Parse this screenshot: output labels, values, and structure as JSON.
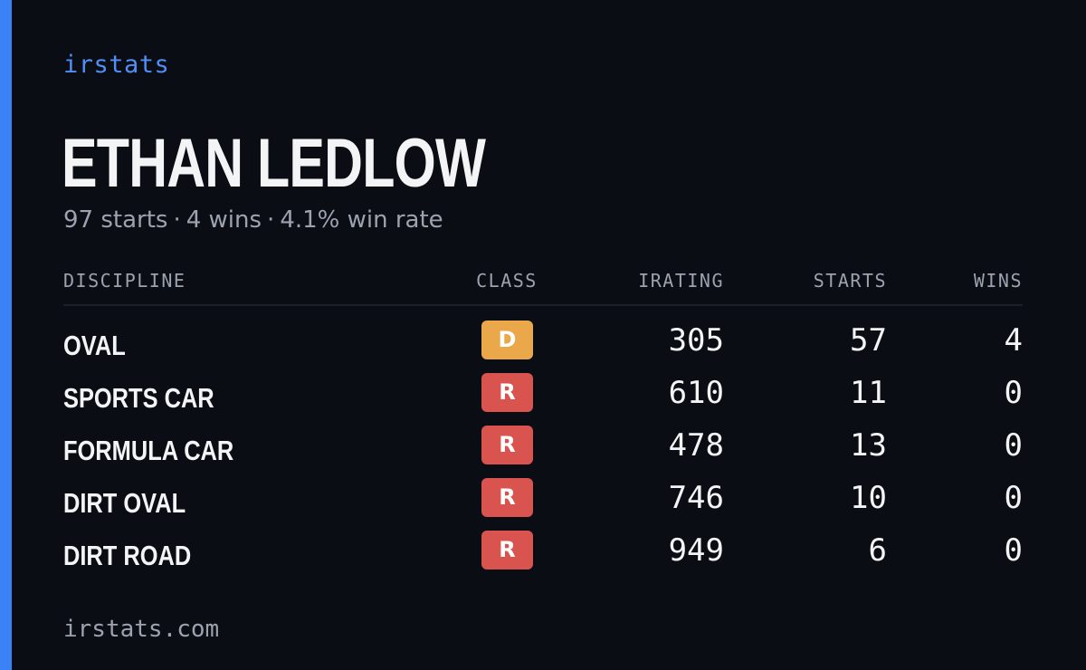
{
  "brand": "irstats",
  "driver": {
    "name": "ETHAN LEDLOW",
    "starts_text": "97 starts",
    "wins_text": "4 wins",
    "win_rate_text": "4.1% win rate",
    "separator": "·"
  },
  "table": {
    "headers": {
      "discipline": "DISCIPLINE",
      "class": "CLASS",
      "irating": "IRATING",
      "starts": "STARTS",
      "wins": "WINS"
    },
    "rows": [
      {
        "discipline": "OVAL",
        "class": "D",
        "class_color": "#eba84a",
        "irating": "305",
        "starts": "57",
        "wins": "4"
      },
      {
        "discipline": "SPORTS CAR",
        "class": "R",
        "class_color": "#d9534f",
        "irating": "610",
        "starts": "11",
        "wins": "0"
      },
      {
        "discipline": "FORMULA CAR",
        "class": "R",
        "class_color": "#d9534f",
        "irating": "478",
        "starts": "13",
        "wins": "0"
      },
      {
        "discipline": "DIRT OVAL",
        "class": "R",
        "class_color": "#d9534f",
        "irating": "746",
        "starts": "10",
        "wins": "0"
      },
      {
        "discipline": "DIRT ROAD",
        "class": "R",
        "class_color": "#d9534f",
        "irating": "949",
        "starts": "6",
        "wins": "0"
      }
    ]
  },
  "footer": {
    "url": "irstats.com"
  },
  "colors": {
    "accent": "#3b82f6",
    "background": "#0a0d14"
  }
}
